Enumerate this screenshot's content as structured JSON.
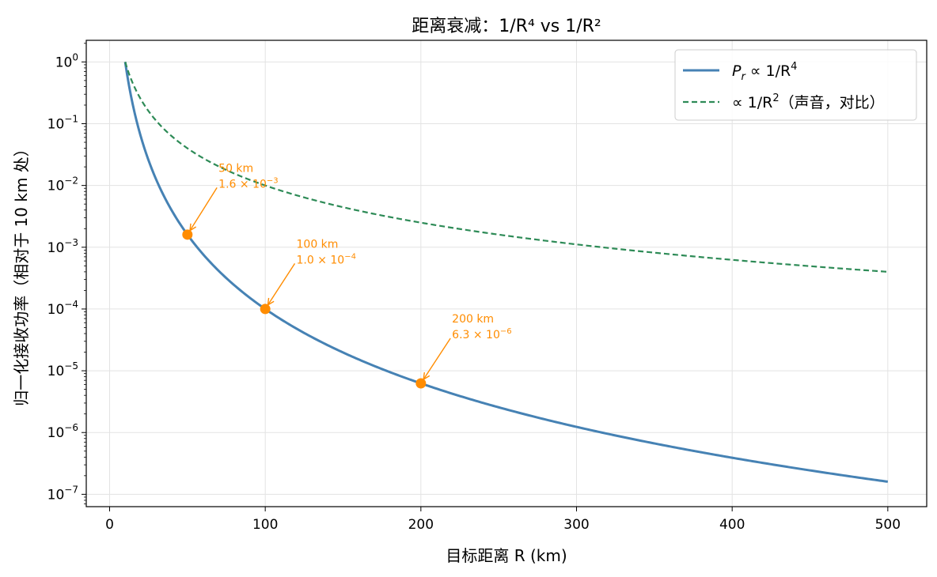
{
  "chart_data": {
    "type": "line",
    "title": "距离衰减：1/R⁴ vs 1/R²",
    "xlabel": "目标距离 R (km)",
    "ylabel": "归一化接收功率（相对于 10 km 处）",
    "xlim": [
      -15,
      525
    ],
    "ylim_log10": [
      -7.2,
      0.35
    ],
    "yscale": "log",
    "grid": true,
    "legend_position": "top-right",
    "x_ticks": [
      0,
      100,
      200,
      300,
      400,
      500
    ],
    "x_tick_labels": [
      "0",
      "100",
      "200",
      "300",
      "400",
      "500"
    ],
    "y_tick_exponents": [
      0,
      -1,
      -2,
      -3,
      -4,
      -5,
      -6,
      -7
    ],
    "y_tick_labels": [
      {
        "base": "10",
        "exp": "0"
      },
      {
        "base": "10",
        "exp": "−1"
      },
      {
        "base": "10",
        "exp": "−2"
      },
      {
        "base": "10",
        "exp": "−3"
      },
      {
        "base": "10",
        "exp": "−4"
      },
      {
        "base": "10",
        "exp": "−5"
      },
      {
        "base": "10",
        "exp": "−6"
      },
      {
        "base": "10",
        "exp": "−7"
      }
    ],
    "series": [
      {
        "name": "Pr ∝ 1/R⁴",
        "legend_parts": {
          "p": "P",
          "sub": "r",
          "rest": " ∝ 1/R",
          "sup": "4"
        },
        "reference_range_km": 10,
        "exponent": 4,
        "x_range": [
          10,
          500
        ],
        "color": "#4682b4",
        "style": "solid"
      },
      {
        "name": "∝ 1/R²（声音，对比）",
        "legend_parts": {
          "pre": "∝ 1/R",
          "sup": "2",
          "post": "（声音，对比）"
        },
        "reference_range_km": 10,
        "exponent": 2,
        "x_range": [
          10,
          500
        ],
        "color": "#2e8b57",
        "style": "dashed"
      }
    ],
    "points": [
      {
        "x": 50,
        "y": 0.0016,
        "line1": "50 km",
        "line2": "1.6 × 10",
        "exp": "−3",
        "label_x": 70,
        "label_y": 0.011
      },
      {
        "x": 100,
        "y": 0.0001,
        "line1": "100 km",
        "line2": "1.0 × 10",
        "exp": "−4",
        "label_x": 120,
        "label_y": 0.00065
      },
      {
        "x": 200,
        "y": 6.25e-06,
        "line1": "200 km",
        "line2": "6.3 × 10",
        "exp": "−6",
        "label_x": 220,
        "label_y": 4e-05
      }
    ],
    "point_color": "#ff8c00"
  }
}
